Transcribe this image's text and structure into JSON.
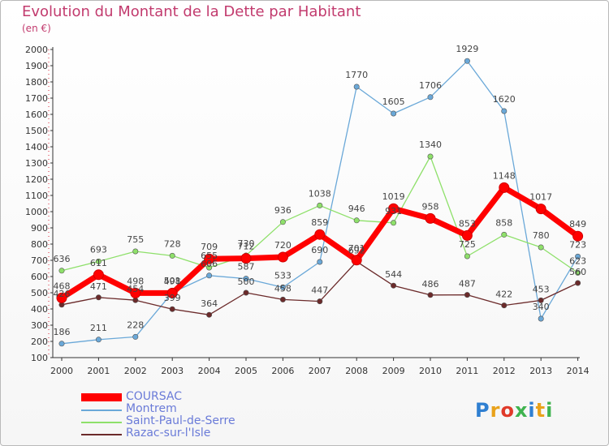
{
  "title": "Evolution du Montant de la Dette par Habitant",
  "unit": "(en €)",
  "logo": "Proxiti",
  "chart_data": {
    "type": "line",
    "x": [
      "2000",
      "2001",
      "2002",
      "2003",
      "2004",
      "2005",
      "2006",
      "2007",
      "2008",
      "2009",
      "2010",
      "2011",
      "2012",
      "2013",
      "2014"
    ],
    "yticks": [
      100,
      200,
      300,
      400,
      500,
      600,
      700,
      800,
      900,
      1000,
      1100,
      1200,
      1300,
      1400,
      1500,
      1600,
      1700,
      1800,
      1900,
      2000
    ],
    "ylim": [
      100,
      2000
    ],
    "grid": false,
    "legend_position": "bottom-left",
    "series": [
      {
        "name": "COURSAC",
        "color": "#ff0000",
        "values": [
          468,
          611,
          498,
          498,
          709,
          712,
          720,
          859,
          701,
          1019,
          958,
          853,
          1148,
          1017,
          849
        ]
      },
      {
        "name": "Montrem",
        "color": "#6aa8d8",
        "values": [
          186,
          211,
          228,
          501,
          606,
          587,
          533,
          690,
          1770,
          1605,
          1706,
          1929,
          1620,
          340,
          723
        ]
      },
      {
        "name": "Saint-Paul-de-Serre",
        "color": "#8ee06a",
        "values": [
          636,
          693,
          755,
          728,
          655,
          730,
          936,
          1038,
          946,
          931,
          1340,
          725,
          858,
          780,
          623
        ]
      },
      {
        "name": "Razac-sur-l'Isle",
        "color": "#6b2a2a",
        "values": [
          426,
          471,
          454,
          399,
          364,
          500,
          458,
          447,
          692,
          544,
          486,
          487,
          422,
          453,
          560
        ]
      }
    ]
  }
}
